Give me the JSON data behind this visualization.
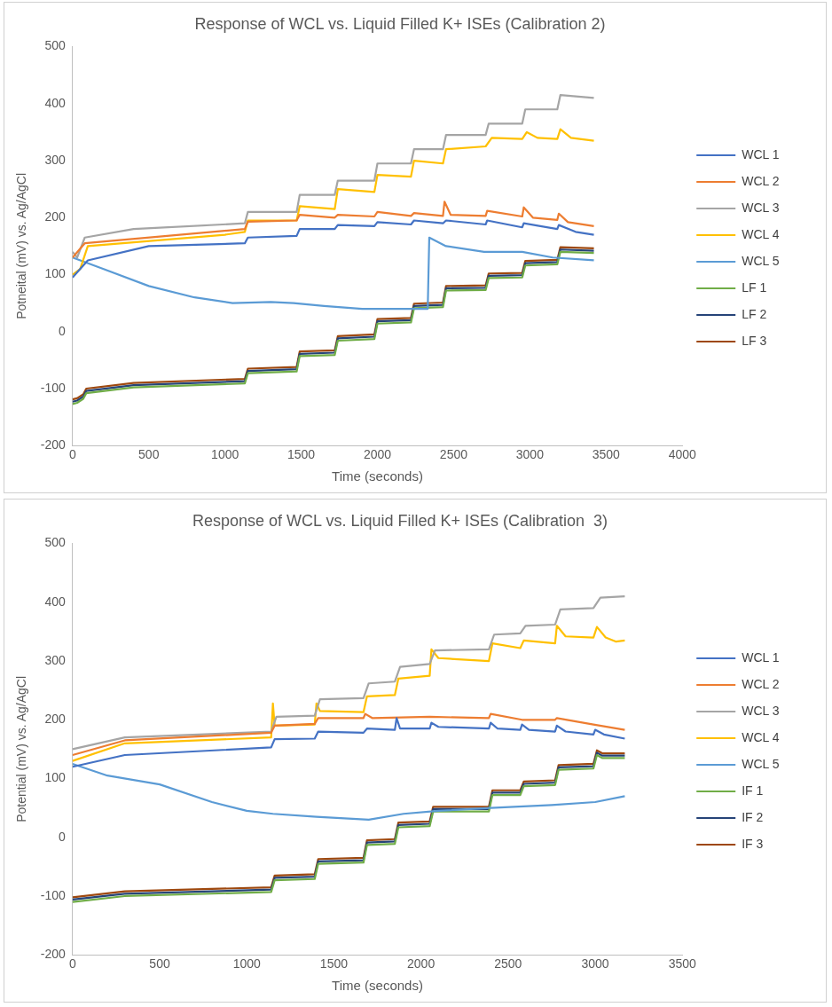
{
  "chart_data": [
    {
      "type": "line",
      "title": "Response of WCL vs. Liquid Filled K+ ISEs (Calibration 2)",
      "xlabel": "Time (seconds)",
      "ylabel": "Potneital (mV) vs. Ag/AgCl",
      "xlim": [
        0,
        4000
      ],
      "ylim": [
        -200,
        500
      ],
      "xticks": [
        0,
        500,
        1000,
        1500,
        2000,
        2500,
        3000,
        3500,
        4000
      ],
      "yticks": [
        -200,
        -100,
        0,
        100,
        200,
        300,
        400,
        500
      ],
      "legend": "right",
      "marker": "none",
      "grid": false,
      "series": [
        {
          "name": "WCL 1",
          "color": "#4472c4",
          "x": [
            0,
            100,
            500,
            1130,
            1150,
            1470,
            1490,
            1720,
            1740,
            1980,
            2000,
            2220,
            2240,
            2430,
            2450,
            2710,
            2720,
            2950,
            2960,
            3180,
            3190,
            3300,
            3420
          ],
          "values": [
            95,
            125,
            150,
            155,
            165,
            168,
            180,
            180,
            187,
            185,
            192,
            188,
            195,
            190,
            195,
            188,
            195,
            183,
            190,
            180,
            187,
            175,
            170
          ]
        },
        {
          "name": "WCL 2",
          "color": "#ed7d31",
          "x": [
            0,
            80,
            1130,
            1150,
            1470,
            1490,
            1720,
            1740,
            1980,
            2000,
            2220,
            2240,
            2430,
            2440,
            2480,
            2710,
            2720,
            2950,
            2960,
            3020,
            3180,
            3190,
            3250,
            3420
          ],
          "values": [
            130,
            155,
            180,
            193,
            195,
            205,
            200,
            205,
            202,
            210,
            203,
            208,
            203,
            228,
            205,
            203,
            212,
            202,
            218,
            200,
            196,
            207,
            192,
            185
          ]
        },
        {
          "name": "WCL 3",
          "color": "#a5a5a5",
          "x": [
            0,
            30,
            80,
            400,
            1130,
            1150,
            1470,
            1490,
            1720,
            1740,
            1980,
            2000,
            2220,
            2240,
            2430,
            2450,
            2710,
            2730,
            2950,
            2970,
            3180,
            3200,
            3420
          ],
          "values": [
            140,
            130,
            165,
            180,
            190,
            210,
            210,
            240,
            240,
            265,
            265,
            295,
            295,
            320,
            320,
            345,
            345,
            365,
            365,
            390,
            390,
            415,
            410
          ]
        },
        {
          "name": "WCL 4",
          "color": "#ffc000",
          "x": [
            0,
            50,
            100,
            1000,
            1130,
            1150,
            1470,
            1490,
            1720,
            1740,
            1980,
            2000,
            2220,
            2240,
            2430,
            2450,
            2710,
            2750,
            2950,
            2980,
            3050,
            3180,
            3200,
            3270,
            3420
          ],
          "values": [
            100,
            110,
            150,
            170,
            175,
            195,
            195,
            220,
            215,
            250,
            245,
            275,
            272,
            300,
            295,
            320,
            325,
            340,
            338,
            350,
            340,
            338,
            355,
            340,
            335
          ]
        },
        {
          "name": "WCL 5",
          "color": "#5b9bd5",
          "x": [
            0,
            200,
            500,
            800,
            1050,
            1300,
            1450,
            1650,
            1900,
            2330,
            2340,
            2450,
            2700,
            2950,
            3150,
            3420
          ],
          "values": [
            130,
            110,
            80,
            60,
            50,
            52,
            50,
            45,
            40,
            40,
            165,
            150,
            140,
            140,
            130,
            125
          ]
        },
        {
          "name": "LF 1",
          "color": "#70ad47",
          "x": [
            0,
            30,
            70,
            90,
            400,
            1130,
            1150,
            1470,
            1490,
            1720,
            1740,
            1980,
            2000,
            2220,
            2240,
            2430,
            2450,
            2710,
            2730,
            2950,
            2970,
            3180,
            3200,
            3420
          ],
          "values": [
            -127,
            -125,
            -118,
            -108,
            -98,
            -91,
            -73,
            -70,
            -43,
            -41,
            -16,
            -13,
            14,
            16,
            41,
            43,
            72,
            73,
            94,
            95,
            116,
            118,
            140,
            138
          ]
        },
        {
          "name": "LF 2",
          "color": "#264478",
          "x": [
            0,
            30,
            70,
            90,
            400,
            1130,
            1150,
            1470,
            1490,
            1720,
            1740,
            1980,
            2000,
            2220,
            2240,
            2430,
            2450,
            2710,
            2730,
            2950,
            2970,
            3180,
            3200,
            3420
          ],
          "values": [
            -123,
            -121,
            -114,
            -104,
            -94,
            -87,
            -69,
            -66,
            -39,
            -37,
            -12,
            -9,
            18,
            20,
            45,
            47,
            76,
            77,
            98,
            99,
            120,
            122,
            144,
            142
          ]
        },
        {
          "name": "LF 3",
          "color": "#9e480e",
          "x": [
            0,
            30,
            70,
            90,
            400,
            1130,
            1150,
            1470,
            1490,
            1720,
            1740,
            1980,
            2000,
            2220,
            2240,
            2430,
            2450,
            2710,
            2730,
            2950,
            2970,
            3180,
            3200,
            3420
          ],
          "values": [
            -119,
            -117,
            -110,
            -100,
            -90,
            -83,
            -65,
            -62,
            -35,
            -33,
            -8,
            -5,
            22,
            24,
            49,
            51,
            80,
            81,
            102,
            103,
            124,
            126,
            148,
            146
          ]
        }
      ]
    },
    {
      "type": "line",
      "title": "Response of WCL vs. Liquid Filled K+ ISEs (Calibration  3)",
      "xlabel": "Time (seconds)",
      "ylabel": "Potential (mV) vs. Ag/AgCl",
      "xlim": [
        0,
        3500
      ],
      "ylim": [
        -200,
        500
      ],
      "xticks": [
        0,
        500,
        1000,
        1500,
        2000,
        2500,
        3000,
        3500
      ],
      "yticks": [
        -200,
        -100,
        0,
        100,
        200,
        300,
        400,
        500
      ],
      "legend": "right",
      "marker": "none",
      "grid": false,
      "series": [
        {
          "name": "WCL 1",
          "color": "#4472c4",
          "x": [
            0,
            300,
            1140,
            1160,
            1390,
            1410,
            1670,
            1690,
            1850,
            1860,
            1880,
            2050,
            2060,
            2100,
            2390,
            2400,
            2440,
            2570,
            2580,
            2620,
            2770,
            2780,
            2830,
            2990,
            3000,
            3050,
            3170
          ],
          "values": [
            120,
            140,
            153,
            167,
            168,
            180,
            178,
            185,
            183,
            203,
            185,
            185,
            195,
            188,
            185,
            195,
            185,
            183,
            192,
            183,
            180,
            190,
            180,
            175,
            183,
            175,
            168
          ]
        },
        {
          "name": "WCL 2",
          "color": "#ed7d31",
          "x": [
            0,
            300,
            1140,
            1160,
            1390,
            1410,
            1670,
            1680,
            1720,
            2050,
            2390,
            2400,
            2580,
            2770,
            2780,
            2990,
            3170
          ],
          "values": [
            140,
            165,
            178,
            190,
            193,
            203,
            203,
            210,
            203,
            205,
            203,
            210,
            200,
            200,
            203,
            192,
            183
          ]
        },
        {
          "name": "WCL 3",
          "color": "#a5a5a5",
          "x": [
            0,
            300,
            1140,
            1170,
            1390,
            1420,
            1670,
            1700,
            1850,
            1880,
            2050,
            2080,
            2390,
            2420,
            2570,
            2600,
            2770,
            2800,
            2990,
            3030,
            3170
          ],
          "values": [
            150,
            170,
            180,
            205,
            207,
            235,
            237,
            262,
            265,
            290,
            295,
            318,
            320,
            345,
            347,
            360,
            362,
            388,
            390,
            408,
            410
          ]
        },
        {
          "name": "WCL 4",
          "color": "#ffc000",
          "x": [
            0,
            300,
            1140,
            1150,
            1160,
            1390,
            1400,
            1420,
            1670,
            1690,
            1850,
            1870,
            2050,
            2060,
            2100,
            2390,
            2410,
            2570,
            2590,
            2770,
            2780,
            2830,
            2990,
            3010,
            3060,
            3120,
            3170
          ],
          "values": [
            130,
            160,
            170,
            228,
            190,
            192,
            228,
            215,
            213,
            240,
            242,
            270,
            275,
            320,
            305,
            300,
            330,
            322,
            335,
            330,
            360,
            342,
            340,
            358,
            340,
            333,
            335
          ]
        },
        {
          "name": "WCL 5",
          "color": "#5b9bd5",
          "x": [
            0,
            200,
            500,
            800,
            1000,
            1150,
            1400,
            1700,
            1900,
            2100,
            2400,
            2750,
            3000,
            3170
          ],
          "values": [
            125,
            105,
            90,
            60,
            45,
            40,
            35,
            30,
            40,
            45,
            50,
            55,
            60,
            70
          ]
        },
        {
          "name": "IF 1",
          "color": "#70ad47",
          "x": [
            0,
            300,
            1140,
            1160,
            1390,
            1410,
            1670,
            1690,
            1850,
            1870,
            2050,
            2070,
            2390,
            2410,
            2570,
            2590,
            2770,
            2790,
            2990,
            3010,
            3040,
            3170
          ],
          "values": [
            -110,
            -100,
            -93,
            -73,
            -71,
            -45,
            -43,
            -13,
            -11,
            17,
            19,
            44,
            44,
            72,
            72,
            87,
            89,
            115,
            117,
            140,
            135,
            135
          ]
        },
        {
          "name": "IF 2",
          "color": "#264478",
          "x": [
            0,
            300,
            1140,
            1160,
            1390,
            1410,
            1670,
            1690,
            1850,
            1870,
            2050,
            2070,
            2390,
            2410,
            2570,
            2590,
            2770,
            2790,
            2990,
            3010,
            3040,
            3170
          ],
          "values": [
            -106,
            -96,
            -89,
            -69,
            -67,
            -41,
            -39,
            -9,
            -7,
            21,
            23,
            48,
            48,
            76,
            76,
            91,
            93,
            119,
            121,
            144,
            139,
            139
          ]
        },
        {
          "name": "IF 3",
          "color": "#9e480e",
          "x": [
            0,
            300,
            1140,
            1160,
            1390,
            1410,
            1670,
            1690,
            1850,
            1870,
            2050,
            2070,
            2390,
            2410,
            2570,
            2590,
            2770,
            2790,
            2990,
            3010,
            3040,
            3170
          ],
          "values": [
            -102,
            -92,
            -85,
            -65,
            -63,
            -37,
            -35,
            -5,
            -3,
            25,
            27,
            52,
            52,
            80,
            80,
            95,
            97,
            123,
            125,
            148,
            143,
            143
          ]
        }
      ]
    }
  ]
}
